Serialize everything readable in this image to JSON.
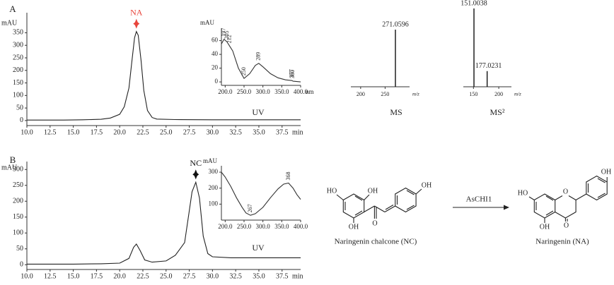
{
  "chart_data": [
    {
      "type": "line",
      "panel": "A",
      "annotation": "NA",
      "annotation_color": "#e8453c",
      "color": "#222222",
      "ylabel": "mAU",
      "xlabel": "min",
      "x": [
        10,
        12,
        14,
        16,
        18,
        19,
        20,
        20.5,
        21,
        21.3,
        21.6,
        21.8,
        22.0,
        22.3,
        22.6,
        23,
        23.5,
        24,
        26,
        30,
        35,
        39.5
      ],
      "values": [
        2,
        2,
        2,
        3,
        5,
        10,
        25,
        55,
        130,
        230,
        330,
        355,
        340,
        240,
        120,
        40,
        12,
        6,
        4,
        3,
        3,
        3
      ],
      "xlim": [
        10,
        39.5
      ],
      "ylim": [
        -20,
        430
      ],
      "xticks": [
        {
          "value": 10,
          "label": "10.0"
        },
        12.5,
        {
          "value": 15,
          "label": "15.0"
        },
        17.5,
        {
          "value": 20,
          "label": "20.0"
        },
        22.5,
        {
          "value": 25,
          "label": "25.0"
        },
        27.5,
        {
          "value": 30,
          "label": "30.0"
        },
        32.5,
        {
          "value": 35,
          "label": "35.0"
        },
        37.5
      ],
      "yticks": [
        0,
        50,
        100,
        150,
        200,
        250,
        300,
        350
      ]
    },
    {
      "type": "line",
      "caption": "UV",
      "ylabel": "mAU",
      "xlabel": "nm",
      "color": "#333333",
      "x": [
        190,
        197,
        205,
        212,
        220,
        235,
        250,
        265,
        280,
        289,
        300,
        320,
        340,
        360,
        377,
        380,
        400
      ],
      "values": [
        55,
        62,
        58,
        52,
        45,
        20,
        5,
        12,
        24,
        27,
        22,
        12,
        6,
        3,
        2,
        1,
        0
      ],
      "xlim": [
        190,
        400
      ],
      "ylim": [
        -5,
        78
      ],
      "xticks": [
        {
          "value": 200,
          "label": "200.0"
        },
        {
          "value": 250,
          "label": "250.0"
        },
        {
          "value": 300,
          "label": "300.0"
        },
        {
          "value": 350,
          "label": "350.0"
        },
        {
          "value": 400,
          "label": "400.0"
        }
      ],
      "yticks": [
        0,
        20,
        40,
        60
      ],
      "peak_labels": [
        197,
        205,
        212,
        250,
        289,
        377,
        380
      ]
    },
    {
      "type": "bar",
      "caption": "MS",
      "xlabel": "m/z",
      "color": "#111111",
      "x": [
        271.0596
      ],
      "values": [
        100
      ],
      "xlim": [
        180,
        300
      ],
      "xticks": [
        200,
        250
      ]
    },
    {
      "type": "bar",
      "caption": "MS²",
      "xlabel": "m/z",
      "color": "#111111",
      "x": [
        151.0038,
        177.0231
      ],
      "values": [
        100,
        20
      ],
      "xlim": [
        130,
        225
      ],
      "xticks": [
        150,
        200
      ]
    },
    {
      "type": "line",
      "panel": "B",
      "annotation": "NC",
      "annotation_color": "#111111",
      "color": "#222222",
      "ylabel": "mAU",
      "xlabel": "min",
      "x": [
        10,
        15,
        18,
        20,
        21,
        21.5,
        21.8,
        22.2,
        22.7,
        23.5,
        25,
        26,
        26.5,
        27,
        27.5,
        27.8,
        28.2,
        28.6,
        29,
        29.5,
        30,
        32,
        35,
        39.5
      ],
      "values": [
        2,
        2,
        3,
        5,
        20,
        55,
        65,
        45,
        15,
        8,
        12,
        30,
        50,
        70,
        170,
        230,
        260,
        210,
        90,
        35,
        25,
        22,
        22,
        22
      ],
      "xlim": [
        10,
        39.5
      ],
      "ylim": [
        -15,
        325
      ],
      "xticks": [
        {
          "value": 10,
          "label": "10.0"
        },
        12.5,
        {
          "value": 15,
          "label": "15.0"
        },
        17.5,
        {
          "value": 20,
          "label": "20.0"
        },
        22.5,
        {
          "value": 25,
          "label": "25.0"
        },
        27.5,
        {
          "value": 30,
          "label": "30.0"
        },
        32.5,
        {
          "value": 35,
          "label": "35.0"
        },
        37.5
      ],
      "yticks": [
        0,
        50,
        100,
        150,
        200,
        250,
        300
      ]
    },
    {
      "type": "line",
      "caption": "UV",
      "ylabel": "mAU",
      "color": "#333333",
      "x": [
        190,
        200,
        215,
        230,
        245,
        255,
        267,
        280,
        300,
        320,
        340,
        355,
        368,
        380,
        390,
        400
      ],
      "values": [
        300,
        270,
        210,
        140,
        80,
        45,
        30,
        40,
        80,
        140,
        195,
        225,
        232,
        200,
        160,
        130
      ],
      "xlim": [
        190,
        400
      ],
      "ylim": [
        0,
        340
      ],
      "xticks": [
        {
          "value": 200,
          "label": "200.0"
        },
        {
          "value": 250,
          "label": "250.0"
        },
        {
          "value": 300,
          "label": "300.0"
        },
        {
          "value": 350,
          "label": "350.0"
        },
        {
          "value": 400,
          "label": "400.0"
        }
      ],
      "yticks": [
        100,
        200,
        300
      ],
      "peak_labels": [
        267,
        368
      ]
    }
  ],
  "scheme": {
    "reactant": {
      "name": "Naringenin chalcone (NC)",
      "atoms": [
        "HO",
        "OH",
        "OH",
        "O",
        "OH"
      ]
    },
    "enzyme": "AsCHI1",
    "product": {
      "name": "Naringenin (NA)",
      "atoms": [
        "HO",
        "O",
        "OH",
        "O",
        "OH"
      ]
    }
  }
}
